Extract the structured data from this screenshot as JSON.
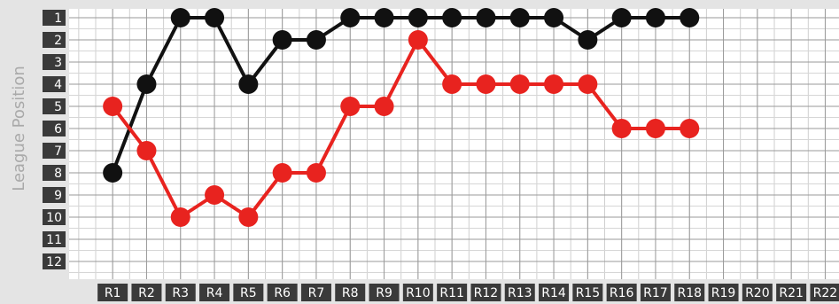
{
  "chart_data": {
    "type": "line",
    "y_label": "League Position",
    "categories": [
      "R1",
      "R2",
      "R3",
      "R4",
      "R5",
      "R6",
      "R7",
      "R8",
      "R9",
      "R10",
      "R11",
      "R12",
      "R13",
      "R14",
      "R15",
      "R16",
      "R17",
      "R18",
      "R19",
      "R20",
      "R21",
      "R22"
    ],
    "series": [
      {
        "color": "#111111",
        "values": [
          8,
          4,
          1,
          1,
          4,
          2,
          2,
          1,
          1,
          1,
          1,
          1,
          1,
          1,
          2,
          1,
          1,
          1,
          null,
          null,
          null,
          null
        ]
      },
      {
        "color": "#e8231f",
        "values": [
          5,
          7,
          10,
          9,
          10,
          8,
          8,
          5,
          5,
          2,
          4,
          4,
          4,
          4,
          4,
          6,
          6,
          6,
          null,
          null,
          null,
          null
        ]
      }
    ],
    "ylim": [
      12.8,
      0.6
    ],
    "yticks": [
      1,
      2,
      3,
      4,
      5,
      6,
      7,
      8,
      9,
      10,
      11,
      12
    ],
    "grid": true
  }
}
